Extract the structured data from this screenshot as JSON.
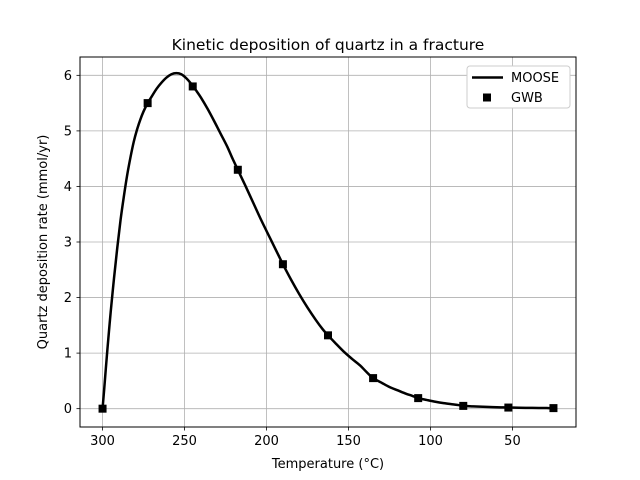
{
  "chart_data": {
    "type": "line",
    "title": "Kinetic deposition of quartz in a fracture",
    "xlabel": "Temperature (°C)",
    "ylabel": "Quartz deposition rate (mmol/yr)",
    "x_reversed": true,
    "xlim": [
      313.75,
      11.25
    ],
    "ylim": [
      -0.33,
      6.33
    ],
    "xticks": [
      300,
      250,
      200,
      150,
      100,
      50
    ],
    "yticks": [
      0,
      1,
      2,
      3,
      4,
      5,
      6
    ],
    "grid": true,
    "legend_position": "upper right",
    "series": [
      {
        "name": "MOOSE",
        "type": "line",
        "color": "#000000",
        "linewidth": 2.5,
        "x": [
          300,
          299,
          298,
          297,
          296,
          295,
          293,
          291,
          289,
          287,
          285,
          283,
          281,
          279,
          277,
          275,
          272.5,
          270,
          267,
          264,
          261,
          258,
          255,
          252,
          249,
          246,
          243,
          240,
          236,
          232,
          228,
          224,
          221,
          217.5,
          213,
          208,
          203,
          198,
          194,
          190,
          185,
          180,
          175,
          170,
          166,
          162.5,
          158,
          153,
          148,
          143,
          139,
          135,
          130,
          125,
          120,
          115,
          111,
          107.5,
          102,
          97,
          92,
          87,
          83,
          80,
          74,
          68,
          62,
          57,
          52.5,
          46,
          40,
          34,
          29,
          25
        ],
        "y": [
          0.0,
          0.35,
          0.72,
          1.08,
          1.42,
          1.75,
          2.35,
          2.9,
          3.4,
          3.82,
          4.2,
          4.52,
          4.8,
          5.02,
          5.2,
          5.35,
          5.5,
          5.62,
          5.76,
          5.87,
          5.96,
          6.02,
          6.04,
          6.02,
          5.95,
          5.85,
          5.73,
          5.6,
          5.4,
          5.18,
          4.95,
          4.72,
          4.52,
          4.3,
          4.02,
          3.7,
          3.38,
          3.08,
          2.84,
          2.6,
          2.32,
          2.06,
          1.82,
          1.6,
          1.44,
          1.32,
          1.18,
          1.03,
          0.9,
          0.78,
          0.66,
          0.55,
          0.47,
          0.39,
          0.33,
          0.27,
          0.23,
          0.19,
          0.155,
          0.125,
          0.1,
          0.08,
          0.065,
          0.05,
          0.042,
          0.034,
          0.028,
          0.024,
          0.02,
          0.017,
          0.014,
          0.012,
          0.011,
          0.01
        ]
      },
      {
        "name": "GWB",
        "type": "scatter",
        "marker": "square",
        "color": "#000000",
        "markersize": 8,
        "x": [
          300,
          272.5,
          245,
          217.5,
          190,
          162.5,
          135,
          107.5,
          80,
          52.5,
          25
        ],
        "y": [
          0.0,
          5.5,
          5.8,
          4.3,
          2.6,
          1.32,
          0.55,
          0.19,
          0.05,
          0.02,
          0.01
        ]
      }
    ],
    "colors": {
      "background": "#ffffff",
      "axes": "#000000",
      "grid": "#b0b0b0",
      "legend_border": "#cccccc",
      "legend_fill": "#ffffff"
    }
  }
}
